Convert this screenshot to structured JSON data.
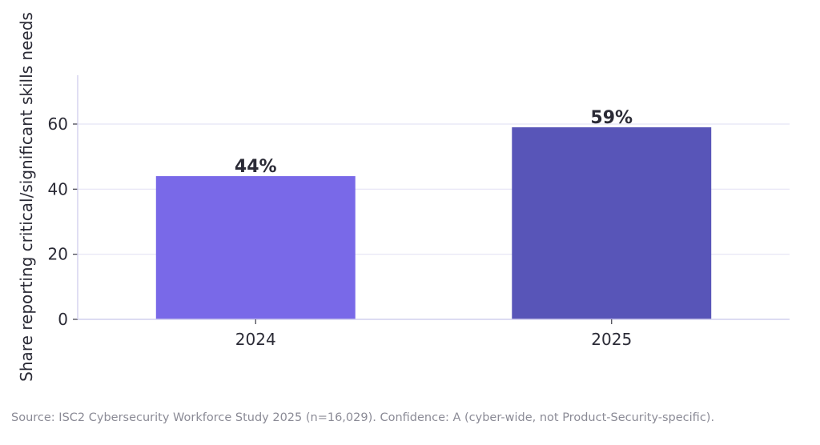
{
  "chart_data": {
    "type": "bar",
    "categories": [
      "2024",
      "2025"
    ],
    "values": [
      44,
      59
    ],
    "value_labels": [
      "44%",
      "59%"
    ],
    "bar_colors": [
      "#7969e8",
      "#5855b8"
    ],
    "title": "",
    "xlabel": "",
    "ylabel": "Share reporting critical/significant skills needs",
    "ylim": [
      0,
      75
    ],
    "yticks": [
      0,
      20,
      40,
      60
    ],
    "ytick_labels": [
      "0",
      "20",
      "40",
      "60"
    ],
    "grid": true,
    "grid_color": "#e4e3f5",
    "axis_color": "#d2d0ee",
    "legend": "none"
  },
  "footer": {
    "source_note": "Source: ISC2 Cybersecurity Workforce Study 2025 (n=16,029). Confidence: A (cyber-wide, not Product-Security-specific)."
  }
}
